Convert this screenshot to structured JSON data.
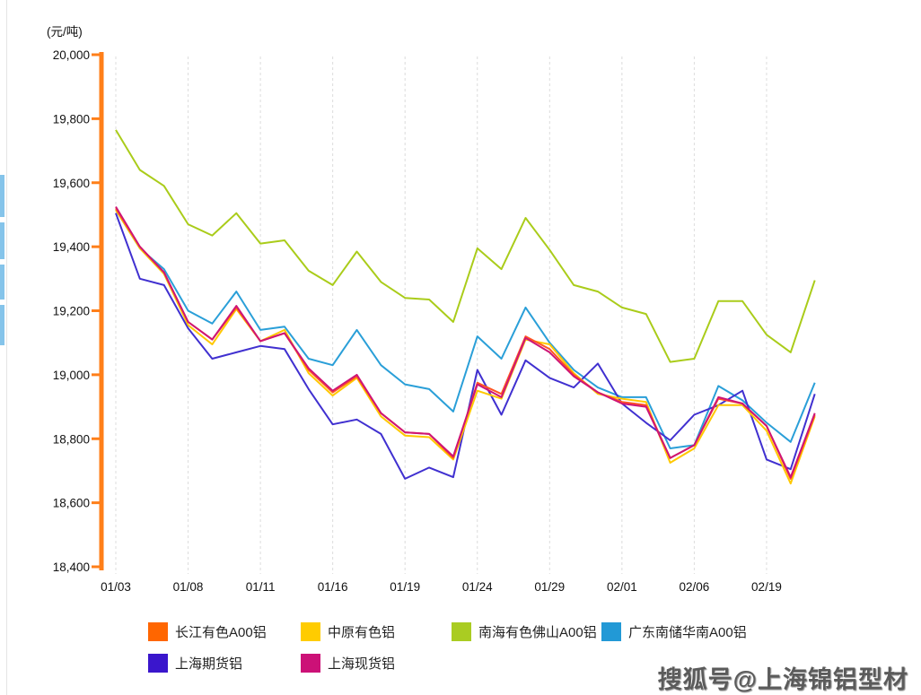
{
  "unit_label": "(元/吨)",
  "watermark_text": "搜狐号@上海锦铝型材",
  "chart_data": {
    "type": "line",
    "title": "",
    "ylabel": "(元/吨)",
    "xlabel": "",
    "ylim": [
      18400,
      20000
    ],
    "y_ticks": [
      20000,
      19800,
      19600,
      19400,
      19200,
      19000,
      18800,
      18600,
      18400
    ],
    "y_tick_labels": [
      "20,000",
      "19,800",
      "19,600",
      "19,400",
      "19,200",
      "19,000",
      "18,800",
      "18,600",
      "18,400"
    ],
    "x_tick_labels": [
      "01/03",
      "01/08",
      "01/11",
      "01/16",
      "01/19",
      "01/24",
      "01/29",
      "02/01",
      "02/06",
      "02/19"
    ],
    "points_per_label": 3,
    "n_points": 30,
    "grid": "vertical-dashed",
    "legend_position": "bottom",
    "axis_color": "#FF7F19",
    "gridline_color": "#DCDCDC",
    "series": [
      {
        "name": "长江有色A00铝",
        "color": "#FF6600",
        "line_color": "#FF5522",
        "values": [
          19520,
          19400,
          19320,
          19165,
          19110,
          19210,
          19105,
          19130,
          19015,
          18945,
          18995,
          18880,
          18820,
          18815,
          18740,
          18975,
          18940,
          19120,
          19080,
          19000,
          18945,
          18915,
          18905,
          18740,
          18780,
          18925,
          18910,
          18840,
          18675,
          18875
        ]
      },
      {
        "name": "中原有色铝",
        "color": "#FFCC00",
        "line_color": "#FFC800",
        "values": [
          19515,
          19395,
          19315,
          19155,
          19095,
          19205,
          19105,
          19140,
          19005,
          18935,
          18990,
          18870,
          18810,
          18805,
          18735,
          18950,
          18925,
          19110,
          19095,
          19005,
          18940,
          18925,
          18915,
          18725,
          18770,
          18905,
          18905,
          18825,
          18660,
          18870
        ]
      },
      {
        "name": "南海有色佛山A00铝",
        "color": "#AACC22",
        "line_color": "#AACC1A",
        "values": [
          19765,
          19640,
          19590,
          19470,
          19435,
          19505,
          19410,
          19420,
          19325,
          19280,
          19385,
          19290,
          19240,
          19235,
          19165,
          19395,
          19330,
          19490,
          19390,
          19280,
          19260,
          19210,
          19190,
          19040,
          19050,
          19230,
          19230,
          19125,
          19070,
          19295
        ]
      },
      {
        "name": "广东南储华南A00铝",
        "color": "#2299D6",
        "line_color": "#2A9FD8",
        "values": [
          19515,
          19395,
          19330,
          19200,
          19160,
          19260,
          19140,
          19150,
          19050,
          19030,
          19140,
          19030,
          18970,
          18955,
          18885,
          19120,
          19050,
          19210,
          19100,
          19015,
          18960,
          18930,
          18930,
          18770,
          18780,
          18965,
          18920,
          18850,
          18790,
          18975
        ]
      },
      {
        "name": "上海期货铝",
        "color": "#3A16CC",
        "line_color": "#4030D0",
        "values": [
          19505,
          19300,
          19280,
          19145,
          19050,
          19070,
          19090,
          19080,
          18955,
          18845,
          18860,
          18815,
          18675,
          18710,
          18680,
          19015,
          18875,
          19045,
          18990,
          18960,
          19035,
          18910,
          18850,
          18795,
          18875,
          18905,
          18950,
          18735,
          18705,
          18940
        ]
      },
      {
        "name": "上海现货铝",
        "color": "#CC1177",
        "line_color": "#CE1576",
        "values": [
          19525,
          19400,
          19320,
          19165,
          19110,
          19215,
          19105,
          19130,
          19020,
          18950,
          19000,
          18880,
          18820,
          18815,
          18745,
          18970,
          18930,
          19115,
          19070,
          18995,
          18945,
          18910,
          18900,
          18740,
          18780,
          18930,
          18910,
          18840,
          18680,
          18880
        ]
      }
    ]
  }
}
